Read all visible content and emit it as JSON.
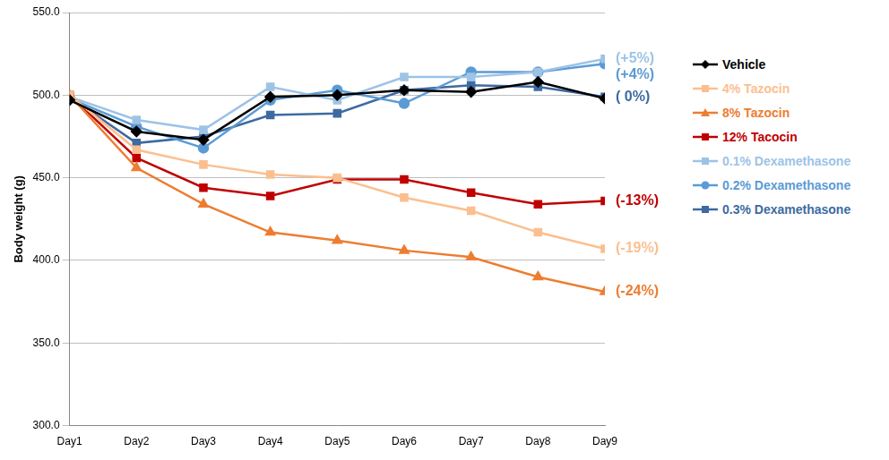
{
  "chart_data": {
    "type": "line",
    "y_label": "Body weight (g)",
    "categories": [
      "Day1",
      "Day2",
      "Day3",
      "Day4",
      "Day5",
      "Day6",
      "Day7",
      "Day8",
      "Day9"
    ],
    "series": [
      {
        "name": "Vehicle",
        "color": "#000000",
        "marker": "diamond",
        "values": [
          497,
          478,
          473,
          499,
          500,
          503,
          502,
          508,
          498
        ]
      },
      {
        "name": "4% Tazocin",
        "color": "#fbbf8f",
        "marker": "square",
        "values": [
          500,
          467,
          458,
          452,
          450,
          438,
          430,
          417,
          407
        ]
      },
      {
        "name": "8% Tazocin",
        "color": "#ed7d31",
        "marker": "triangle",
        "values": [
          500,
          456,
          434,
          417,
          412,
          406,
          402,
          390,
          381
        ]
      },
      {
        "name": "12% Tacocin",
        "color": "#c00000",
        "marker": "square",
        "values": [
          500,
          462,
          444,
          439,
          449,
          449,
          441,
          434,
          436
        ]
      },
      {
        "name": "0.1% Dexamethasone",
        "color": "#9dc3e6",
        "marker": "square",
        "values": [
          499,
          485,
          479,
          505,
          497,
          511,
          511,
          514,
          522
        ]
      },
      {
        "name": "0.2% Dexamethasone",
        "color": "#5b9bd5",
        "marker": "circle",
        "values": [
          498,
          481,
          468,
          497,
          503,
          495,
          514,
          514,
          519
        ]
      },
      {
        "name": "0.3% Dexamethasone",
        "color": "#3d6aa1",
        "marker": "square",
        "values": [
          499,
          471,
          475,
          488,
          489,
          503,
          506,
          505,
          499
        ]
      }
    ],
    "annotations": [
      {
        "text": "(+5%)",
        "series": "0.1% Dexamethasone"
      },
      {
        "text": "(+4%)",
        "series": "0.2% Dexamethasone"
      },
      {
        "text": "( 0%)",
        "series": "0.3% Dexamethasone"
      },
      {
        "text": "(-13%)",
        "series": "12% Tacocin"
      },
      {
        "text": "(-19%)",
        "series": "4% Tazocin"
      },
      {
        "text": "(-24%)",
        "series": "8% Tazocin"
      }
    ],
    "ylim": [
      300,
      550
    ],
    "yticks": [
      {
        "value": 300,
        "label": "300.0"
      },
      {
        "value": 350,
        "label": "350.0"
      },
      {
        "value": 400,
        "label": "400.0"
      },
      {
        "value": 450,
        "label": "450.0"
      },
      {
        "value": 500,
        "label": "500.0"
      },
      {
        "value": 550,
        "label": "550.0"
      }
    ],
    "grid": true,
    "legend": "right"
  }
}
